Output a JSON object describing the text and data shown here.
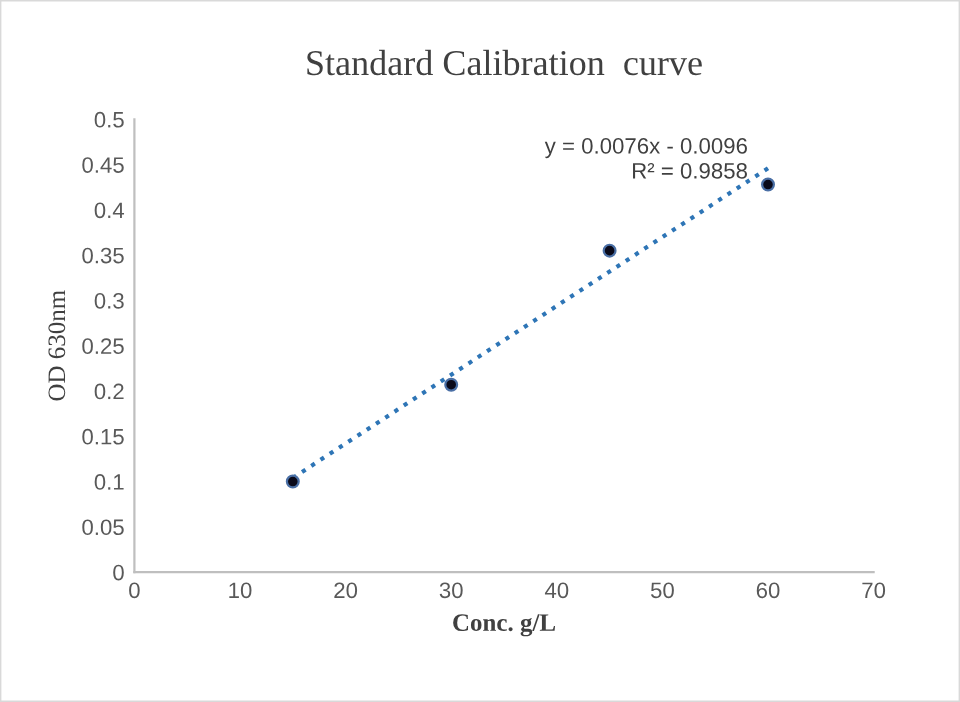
{
  "chart_data": {
    "type": "scatter",
    "title": "Standard Calibration  curve",
    "xlabel": "Conc. g/L",
    "ylabel": "OD 630nm",
    "x": [
      15,
      30,
      45,
      60
    ],
    "series": [
      {
        "color": "#0a0a1a",
        "marker": "circle",
        "values": [
          0.1,
          0.207,
          0.355,
          0.428
        ]
      },
      {
        "type": "line",
        "color": "#2e75b6",
        "line_style": "dotted",
        "marker": "none",
        "x": [
          15,
          60
        ],
        "values": [
          0.104,
          0.446
        ]
      }
    ],
    "annotations": [
      "y = 0.0076x - 0.0096",
      "R² = 0.9858"
    ],
    "xlim": [
      0,
      70
    ],
    "xticks": [
      0,
      10,
      20,
      30,
      40,
      50,
      60,
      70
    ],
    "ylim": [
      0,
      0.5
    ],
    "yticks": [
      0,
      0.05,
      0.1,
      0.15,
      0.2,
      0.25,
      0.3,
      0.35,
      0.4,
      0.45,
      0.5
    ],
    "grid": false,
    "legend": false
  }
}
